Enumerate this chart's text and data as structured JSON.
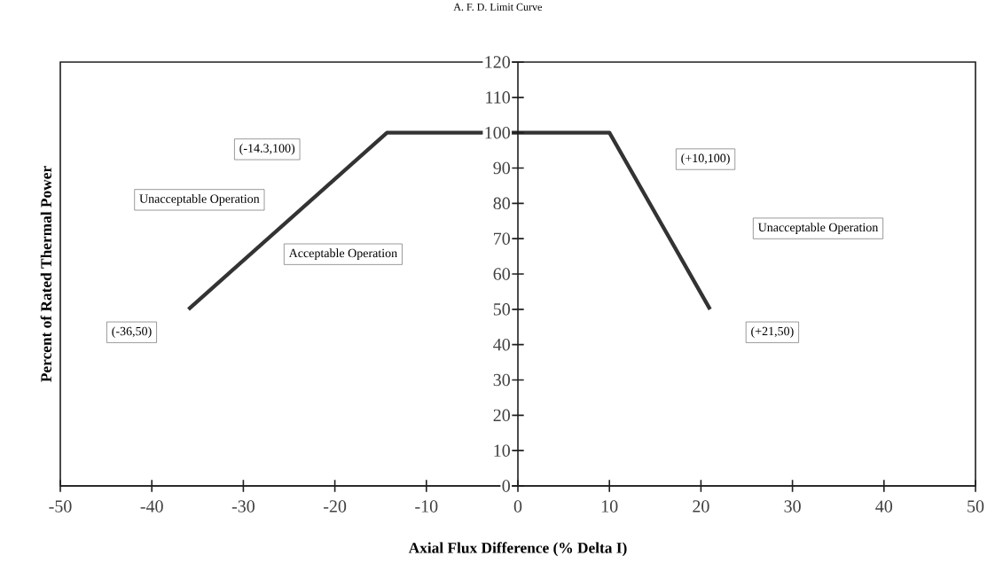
{
  "chart_data": {
    "type": "line",
    "title": "A. F. D. Limit Curve",
    "xlabel": "Axial Flux Difference (% Delta I)",
    "ylabel": "Percent of Rated Thermal Power",
    "x": [
      -36,
      -14.3,
      10,
      21
    ],
    "values": [
      50,
      100,
      100,
      50
    ],
    "color": "#333333",
    "xlim": [
      -50,
      50
    ],
    "ylim": [
      0,
      120
    ],
    "xticks": [
      -50,
      -40,
      -30,
      -20,
      -10,
      0,
      10,
      20,
      30,
      40,
      50
    ],
    "yticks": [
      0,
      10,
      20,
      30,
      40,
      50,
      60,
      70,
      80,
      90,
      100,
      110,
      120
    ],
    "marker": "none",
    "line_style": "solid",
    "grid": false,
    "annotations": [
      "(-36,50)",
      "(-14.3,100)",
      "(+10,100)",
      "(+21,50)",
      "Unacceptable Operation",
      "Acceptable Operation",
      "Unacceptable Operation"
    ]
  }
}
